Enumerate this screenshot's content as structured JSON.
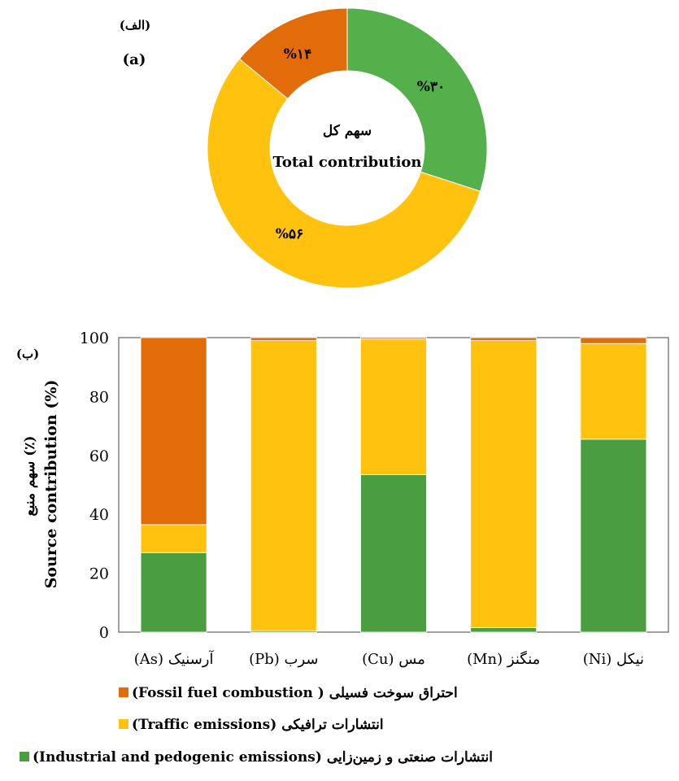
{
  "chart_data": [
    {
      "type": "pie",
      "panel_label_fa": "(الف)",
      "panel_label_en": "(a)",
      "center_title_fa": "سهم کل",
      "center_title_en": "Total contribution",
      "categories": [
        "Industrial and pedogenic emissions",
        "Traffic emissions",
        "Fossil fuel combustion"
      ],
      "values": [
        30,
        56,
        14
      ],
      "value_labels": [
        "%۳۰",
        "%۵۶",
        "%۱۴"
      ],
      "colors": [
        "#54b04a",
        "#ffc20e",
        "#e36c0a"
      ]
    },
    {
      "type": "bar",
      "stacked": true,
      "panel_label_fa": "(ب)",
      "categories": [
        "(As) آرسنیک",
        "(Pb) سرب",
        "(Cu) مس",
        "(Mn) منگنز",
        "(Ni) نیکل"
      ],
      "ylabel_fa": "سهم منبع (٪)",
      "ylabel_en": "Source contribution (%)",
      "ylim": [
        0,
        100
      ],
      "yticks": [
        0,
        20,
        40,
        60,
        80,
        100
      ],
      "series": [
        {
          "name": "(Industrial and pedogenic emissions) انتشارات صنعتی و زمین‌زایی",
          "color": "#4a9e3f",
          "values": [
            27,
            0.5,
            53.5,
            1.5,
            65.5
          ]
        },
        {
          "name": "(Traffic emissions) انتشارات ترافیکی",
          "color": "#ffc20e",
          "values": [
            9.5,
            98.5,
            46,
            97.5,
            32.5
          ]
        },
        {
          "name": "(Fossil fuel combustion ) احتراق سوخت فسیلی",
          "color": "#e36c0a",
          "values": [
            63.5,
            1,
            0.5,
            1,
            2
          ]
        }
      ],
      "legend_position": "bottom"
    }
  ]
}
